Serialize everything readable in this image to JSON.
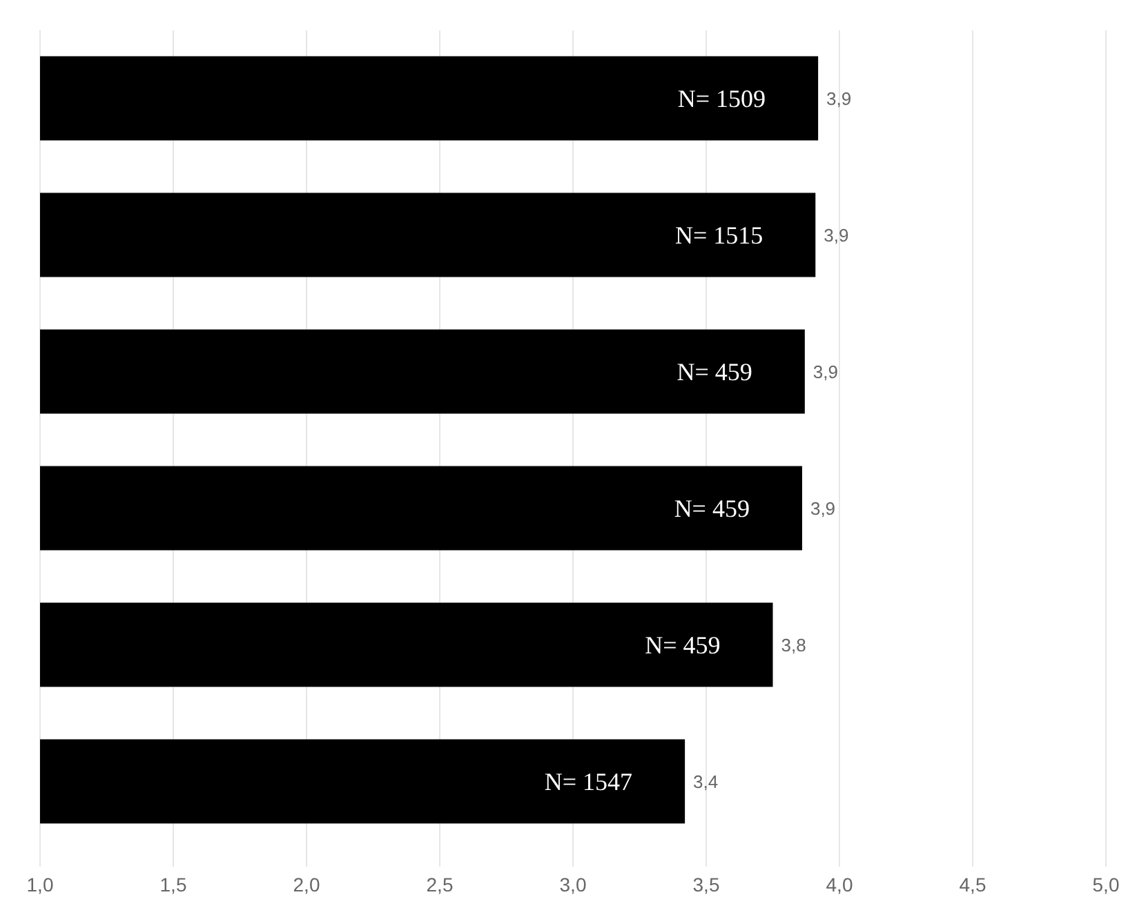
{
  "chart_data": {
    "type": "bar",
    "orientation": "horizontal",
    "categories": [
      null,
      null,
      null,
      null,
      null,
      null
    ],
    "values": [
      3.92,
      3.91,
      3.87,
      3.86,
      3.75,
      3.42
    ],
    "value_labels": [
      "3,9",
      "3,9",
      "3,9",
      "3,9",
      "3,8",
      "3,4"
    ],
    "color": "#000000",
    "annotations": [
      "N= 1509",
      "N= 1515",
      "N= 459",
      "N= 459",
      "N= 459",
      "N= 1547"
    ],
    "xlim": [
      1,
      5
    ],
    "xticks": [
      {
        "value": 1,
        "label": "1,0"
      },
      {
        "value": 1.5,
        "label": "1,5"
      },
      {
        "value": 2,
        "label": "2,0"
      },
      {
        "value": 2.5,
        "label": "2,5"
      },
      {
        "value": 3,
        "label": "3,0"
      },
      {
        "value": 3.5,
        "label": "3,5"
      },
      {
        "value": 4,
        "label": "4,0"
      },
      {
        "value": 4.5,
        "label": "4,5"
      },
      {
        "value": 5,
        "label": "5,0"
      }
    ],
    "grid": "x"
  }
}
